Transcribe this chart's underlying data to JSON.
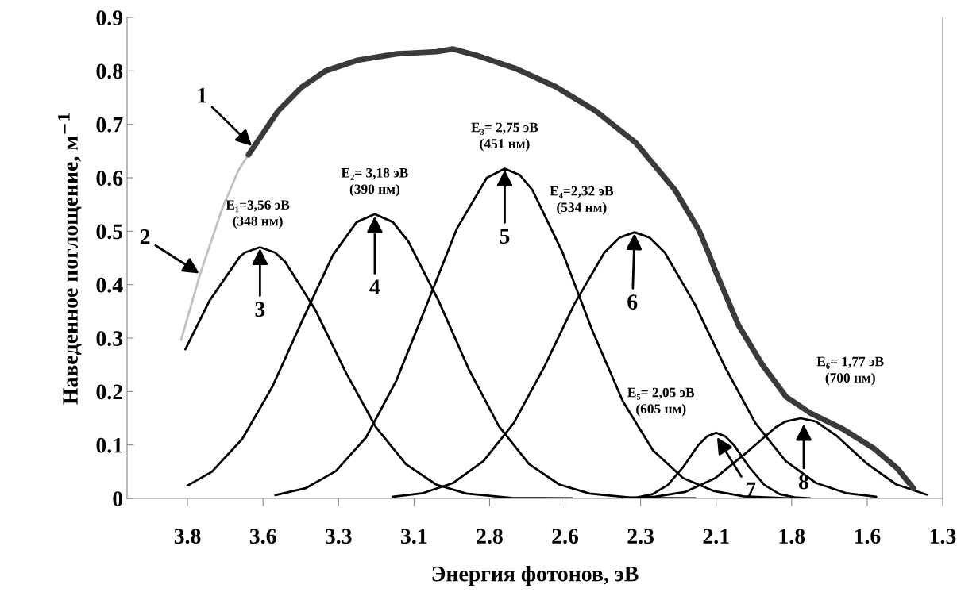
{
  "chart_data": {
    "type": "line",
    "xlabel": "Энергия фотонов, эВ",
    "ylabel": "Наведенное поглощение, м$^{−1}$",
    "xlim": [
      4.0,
      1.3
    ],
    "ylim": [
      0,
      0.9
    ],
    "xticks": [
      3.8,
      {
        "value": 3.55,
        "label": "3.6"
      },
      3.3,
      {
        "value": 3.05,
        "label": "3.1"
      },
      2.8,
      {
        "value": 2.55,
        "label": "2.6"
      },
      2.3,
      {
        "value": 2.05,
        "label": "2.1"
      },
      1.8,
      {
        "value": 1.55,
        "label": "1.6"
      },
      1.3
    ],
    "yticks": [
      0,
      0.1,
      0.2,
      0.3,
      0.4,
      0.5,
      0.6,
      0.7,
      0.8,
      0.9
    ],
    "grid": false,
    "series": [
      {
        "color": "#3a3a3a",
        "x": [
          3.598,
          3.5,
          3.421,
          3.343,
          3.237,
          3.106,
          2.975,
          2.922,
          2.843,
          2.712,
          2.58,
          2.449,
          2.317,
          2.186,
          2.107,
          2.076,
          2.054,
          1.976,
          1.897,
          1.818,
          1.739,
          1.634,
          1.529,
          1.45,
          1.397
        ],
        "values": [
          0.643,
          0.725,
          0.77,
          0.8,
          0.82,
          0.832,
          0.836,
          0.841,
          0.829,
          0.804,
          0.77,
          0.725,
          0.666,
          0.577,
          0.502,
          0.46,
          0.428,
          0.324,
          0.25,
          0.19,
          0.16,
          0.131,
          0.094,
          0.056,
          0.019
        ]
      },
      {
        "color": "#c0c0c0",
        "x": [
          3.821,
          3.758,
          3.684,
          3.632,
          3.579
        ],
        "values": [
          0.297,
          0.42,
          0.544,
          0.613,
          0.661
        ]
      },
      {
        "color": "#000000",
        "x": [
          3.807,
          3.727,
          3.627,
          3.61,
          3.56,
          3.51,
          3.477,
          3.377,
          3.277,
          3.177,
          3.077,
          2.977,
          2.877,
          2.727,
          2.527
        ],
        "values": [
          0.279,
          0.37,
          0.452,
          0.46,
          0.47,
          0.46,
          0.443,
          0.353,
          0.237,
          0.134,
          0.064,
          0.026,
          0.009,
          0.001,
          0
        ]
      },
      {
        "color": "#000000",
        "x": [
          3.8,
          3.719,
          3.619,
          3.519,
          3.419,
          3.319,
          3.24,
          3.18,
          3.12,
          3.069,
          2.969,
          2.869,
          2.769,
          2.669,
          2.569,
          2.469,
          2.319,
          2.119
        ],
        "values": [
          0.024,
          0.05,
          0.111,
          0.209,
          0.334,
          0.455,
          0.517,
          0.532,
          0.517,
          0.481,
          0.37,
          0.242,
          0.135,
          0.064,
          0.026,
          0.009,
          0.001,
          0
        ]
      },
      {
        "color": "#000000",
        "x": [
          3.509,
          3.409,
          3.309,
          3.209,
          3.109,
          3.009,
          2.909,
          2.809,
          2.75,
          2.7,
          2.659,
          2.559,
          2.459,
          2.359,
          2.259,
          2.159,
          2.059,
          1.959,
          1.809
        ],
        "values": [
          0.006,
          0.019,
          0.051,
          0.114,
          0.22,
          0.361,
          0.504,
          0.6,
          0.617,
          0.605,
          0.578,
          0.461,
          0.313,
          0.182,
          0.09,
          0.038,
          0.014,
          0.004,
          0
        ]
      },
      {
        "color": "#000000",
        "x": [
          3.12,
          3.02,
          2.92,
          2.82,
          2.72,
          2.62,
          2.52,
          2.42,
          2.37,
          2.32,
          2.27,
          2.22,
          2.12,
          2.02,
          1.92,
          1.82,
          1.72,
          1.62,
          1.52
        ],
        "values": [
          0.003,
          0.01,
          0.029,
          0.07,
          0.141,
          0.245,
          0.363,
          0.46,
          0.488,
          0.498,
          0.488,
          0.46,
          0.363,
          0.245,
          0.141,
          0.07,
          0.029,
          0.01,
          0.003
        ]
      },
      {
        "color": "#000000",
        "x": [
          2.36,
          2.31,
          2.26,
          2.21,
          2.16,
          2.11,
          2.08,
          2.05,
          2.02,
          1.99,
          1.94,
          1.89,
          1.84,
          1.79,
          1.74
        ],
        "values": [
          0,
          0.002,
          0.008,
          0.025,
          0.058,
          0.099,
          0.116,
          0.123,
          0.116,
          0.099,
          0.058,
          0.025,
          0.008,
          0.002,
          0
        ]
      },
      {
        "color": "#000000",
        "x": [
          2.353,
          2.253,
          2.153,
          2.053,
          1.953,
          1.853,
          1.82,
          1.77,
          1.72,
          1.653,
          1.553,
          1.453,
          1.353
        ],
        "values": [
          0,
          0.003,
          0.012,
          0.038,
          0.084,
          0.133,
          0.144,
          0.15,
          0.144,
          0.118,
          0.066,
          0.026,
          0.007
        ]
      }
    ],
    "annotations": [
      {
        "text": "1",
        "x": 3.584,
        "y": 0.658
      },
      {
        "text": "2",
        "x": 3.758,
        "y": 0.42
      },
      {
        "text": "3",
        "x": 3.56,
        "y": 0.47
      },
      {
        "text": "4",
        "x": 3.18,
        "y": 0.53
      },
      {
        "text": "5",
        "x": 2.75,
        "y": 0.617
      },
      {
        "text": "6",
        "x": 2.32,
        "y": 0.498
      },
      {
        "text": "7",
        "x": 2.049,
        "y": 0.116
      },
      {
        "text": "8",
        "x": 1.76,
        "y": 0.141
      },
      {
        "text": "E₁=3,56 эВ\n(348 нм)",
        "x": 3.56,
        "y": 0.47
      },
      {
        "text": "E₂= 3,18 эВ\n(390 нм)",
        "x": 3.18,
        "y": 0.532
      },
      {
        "text": "E₃= 2,75 эВ\n(451 нм)",
        "x": 2.75,
        "y": 0.617
      },
      {
        "text": "E₄=2,32 эВ\n(534 нм)",
        "x": 2.32,
        "y": 0.498
      },
      {
        "text": "E₅= 2,05 эВ\n(605 нм)",
        "x": 2.05,
        "y": 0.123
      },
      {
        "text": "E₆= 1,77 эВ\n(700 нм)",
        "x": 1.77,
        "y": 0.15
      }
    ]
  }
}
